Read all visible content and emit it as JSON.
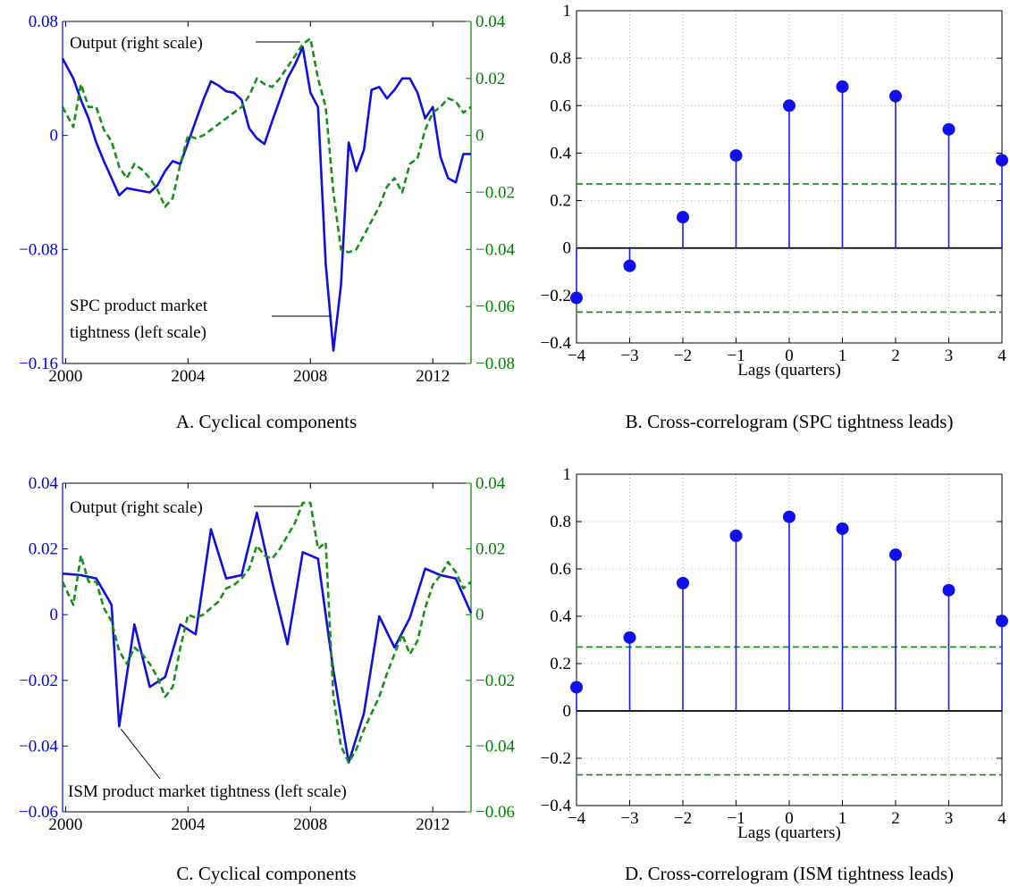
{
  "colors": {
    "left_axis": "#0000ee",
    "right_axis": "#008000",
    "spc_line": "#1010dd",
    "output_line": "#189018",
    "stem": "#1a1aee",
    "marker": "#1010ee",
    "band": "#118811",
    "zero_line": "#000000",
    "grid": "#b4b4b4"
  },
  "chart_data": [
    {
      "id": "A",
      "type": "line",
      "caption": "A. Cyclical components",
      "x_ticks": [
        2000,
        2004,
        2008,
        2012
      ],
      "xlim": [
        1999.9,
        2013.25
      ],
      "ylim_left": [
        -0.16,
        0.08
      ],
      "yticks_left": [
        "0.08",
        "0",
        "−0.08",
        "−0.16"
      ],
      "yticks_left_values": [
        0.08,
        0,
        -0.08,
        -0.16
      ],
      "ylim_right": [
        -0.08,
        0.04
      ],
      "yticks_right": [
        "0.04",
        "0.02",
        "0",
        "−0.02",
        "−0.04",
        "−0.06",
        "−0.08"
      ],
      "yticks_right_values": [
        0.04,
        0.02,
        0,
        -0.02,
        -0.04,
        -0.06,
        -0.08
      ],
      "annotations": {
        "output": "Output (right scale)",
        "tightness_line1": "SPC product market",
        "tightness_line2": "tightness (left scale)"
      },
      "series": [
        {
          "name": "SPC product market tightness (left scale)",
          "axis": "left",
          "style": "solid",
          "x": [
            1999.9,
            2000.25,
            2000.5,
            2000.75,
            2001.0,
            2001.25,
            2001.5,
            2001.75,
            2002.0,
            2002.25,
            2002.5,
            2002.75,
            2003.0,
            2003.25,
            2003.5,
            2003.75,
            2004.0,
            2004.25,
            2004.5,
            2004.75,
            2005.0,
            2005.25,
            2005.5,
            2005.75,
            2006.0,
            2006.25,
            2006.5,
            2006.75,
            2007.0,
            2007.25,
            2007.5,
            2007.75,
            2008.0,
            2008.25,
            2008.5,
            2008.75,
            2009.0,
            2009.25,
            2009.5,
            2009.75,
            2010.0,
            2010.25,
            2010.5,
            2010.75,
            2011.0,
            2011.25,
            2011.5,
            2011.75,
            2012.0,
            2012.25,
            2012.5,
            2012.75,
            2013.0,
            2013.25
          ],
          "values": [
            0.054,
            0.04,
            0.025,
            0.012,
            -0.005,
            -0.018,
            -0.03,
            -0.042,
            -0.037,
            -0.038,
            -0.039,
            -0.04,
            -0.035,
            -0.025,
            -0.018,
            -0.02,
            -0.005,
            0.01,
            0.025,
            0.038,
            0.035,
            0.031,
            0.03,
            0.025,
            0.005,
            -0.002,
            -0.006,
            0.01,
            0.025,
            0.04,
            0.05,
            0.062,
            0.03,
            0.02,
            -0.09,
            -0.151,
            -0.105,
            -0.005,
            -0.025,
            -0.01,
            0.032,
            0.034,
            0.026,
            0.032,
            0.04,
            0.04,
            0.03,
            0.012,
            0.02,
            -0.015,
            -0.03,
            -0.033,
            -0.013,
            -0.013
          ]
        },
        {
          "name": "Output (right scale)",
          "axis": "right",
          "style": "dashed",
          "x": [
            1999.9,
            2000.25,
            2000.5,
            2000.75,
            2001.0,
            2001.25,
            2001.5,
            2001.75,
            2002.0,
            2002.25,
            2002.5,
            2002.75,
            2003.0,
            2003.25,
            2003.5,
            2003.75,
            2004.0,
            2004.25,
            2004.5,
            2004.75,
            2005.0,
            2005.25,
            2005.5,
            2005.75,
            2006.0,
            2006.25,
            2006.5,
            2006.75,
            2007.0,
            2007.25,
            2007.5,
            2007.75,
            2008.0,
            2008.25,
            2008.5,
            2008.75,
            2009.0,
            2009.25,
            2009.5,
            2009.75,
            2010.0,
            2010.25,
            2010.5,
            2010.75,
            2011.0,
            2011.25,
            2011.5,
            2011.75,
            2012.0,
            2012.25,
            2012.5,
            2012.75,
            2013.0,
            2013.25
          ],
          "values": [
            0.01,
            0.003,
            0.018,
            0.01,
            0.01,
            0.002,
            -0.002,
            -0.011,
            -0.015,
            -0.01,
            -0.012,
            -0.015,
            -0.019,
            -0.025,
            -0.022,
            -0.01,
            0.0,
            -0.001,
            0.0,
            0.002,
            0.004,
            0.006,
            0.008,
            0.01,
            0.014,
            0.02,
            0.018,
            0.017,
            0.02,
            0.024,
            0.028,
            0.032,
            0.034,
            0.02,
            0.01,
            -0.02,
            -0.04,
            -0.041,
            -0.04,
            -0.035,
            -0.03,
            -0.025,
            -0.018,
            -0.015,
            -0.02,
            -0.01,
            -0.008,
            0.002,
            0.008,
            0.01,
            0.013,
            0.012,
            0.008,
            0.01
          ]
        }
      ]
    },
    {
      "id": "B",
      "type": "stem",
      "caption": "B. Cross-correlogram (SPC tightness leads)",
      "xlabel": "Lags (quarters)",
      "x": [
        -4,
        -3,
        -2,
        -1,
        0,
        1,
        2,
        3,
        4
      ],
      "x_tick_labels": [
        "−4",
        "−3",
        "−2",
        "−1",
        "0",
        "1",
        "2",
        "3",
        "4"
      ],
      "values": [
        -0.21,
        -0.075,
        0.13,
        0.39,
        0.6,
        0.68,
        0.64,
        0.5,
        0.37
      ],
      "ylim": [
        -0.4,
        1
      ],
      "yticks": [
        1,
        0.8,
        0.6,
        0.4,
        0.2,
        0,
        -0.2,
        -0.4
      ],
      "ytick_labels": [
        "1",
        "0.8",
        "0.6",
        "0.4",
        "0.2",
        "0",
        "−0.2",
        "−0.4"
      ],
      "confidence_band": [
        0.27,
        -0.27
      ],
      "grid": true
    },
    {
      "id": "C",
      "type": "line",
      "caption": "C. Cyclical components",
      "x_ticks": [
        2000,
        2004,
        2008,
        2012
      ],
      "xlim": [
        1999.9,
        2013.25
      ],
      "ylim_left": [
        -0.06,
        0.04
      ],
      "yticks_left": [
        "0.04",
        "0.02",
        "0",
        "−0.02",
        "−0.04",
        "−0.06"
      ],
      "yticks_left_values": [
        0.04,
        0.02,
        0,
        -0.02,
        -0.04,
        -0.06
      ],
      "ylim_right": [
        -0.06,
        0.04
      ],
      "yticks_right": [
        "0.04",
        "0.02",
        "0",
        "−0.02",
        "−0.04",
        "−0.06"
      ],
      "yticks_right_values": [
        0.04,
        0.02,
        0,
        -0.02,
        -0.04,
        -0.06
      ],
      "annotations": {
        "output": "Output (right scale)",
        "tightness": "ISM product market tightness (left scale)"
      },
      "series": [
        {
          "name": "ISM product market tightness (left scale)",
          "axis": "left",
          "style": "solid",
          "x": [
            1999.9,
            2000.5,
            2001.0,
            2001.5,
            2001.75,
            2002.25,
            2002.75,
            2003.25,
            2003.75,
            2004.25,
            2004.75,
            2005.25,
            2005.75,
            2006.25,
            2006.75,
            2007.25,
            2007.75,
            2008.25,
            2008.75,
            2009.25,
            2009.75,
            2010.25,
            2010.75,
            2011.25,
            2011.75,
            2012.25,
            2012.75,
            2013.25
          ],
          "values": [
            0.0125,
            0.012,
            0.011,
            0.003,
            -0.034,
            -0.003,
            -0.022,
            -0.019,
            -0.003,
            -0.006,
            0.026,
            0.011,
            0.012,
            0.031,
            0.01,
            -0.009,
            0.019,
            0.017,
            -0.017,
            -0.045,
            -0.03,
            -0.0005,
            -0.01,
            -0.001,
            0.014,
            0.012,
            0.011,
            0.0005
          ]
        },
        {
          "name": "Output (right scale)",
          "axis": "right",
          "style": "dashed",
          "x": [
            1999.9,
            2000.25,
            2000.5,
            2000.75,
            2001.0,
            2001.25,
            2001.5,
            2001.75,
            2002.0,
            2002.25,
            2002.5,
            2002.75,
            2003.0,
            2003.25,
            2003.5,
            2003.75,
            2004.0,
            2004.25,
            2004.5,
            2004.75,
            2005.0,
            2005.25,
            2005.5,
            2005.75,
            2006.0,
            2006.25,
            2006.5,
            2006.75,
            2007.0,
            2007.25,
            2007.5,
            2007.75,
            2008.0,
            2008.25,
            2008.5,
            2008.75,
            2009.0,
            2009.25,
            2009.5,
            2009.75,
            2010.0,
            2010.25,
            2010.5,
            2010.75,
            2011.0,
            2011.25,
            2011.5,
            2011.75,
            2012.0,
            2012.25,
            2012.5,
            2012.75,
            2013.0,
            2013.25
          ],
          "values": [
            0.01,
            0.003,
            0.018,
            0.01,
            0.01,
            0.002,
            -0.002,
            -0.011,
            -0.015,
            -0.01,
            -0.012,
            -0.015,
            -0.019,
            -0.025,
            -0.022,
            -0.01,
            0.0,
            -0.001,
            0.0,
            0.002,
            0.004,
            0.008,
            0.009,
            0.011,
            0.014,
            0.021,
            0.018,
            0.017,
            0.02,
            0.024,
            0.028,
            0.034,
            0.034,
            0.02,
            0.022,
            -0.025,
            -0.04,
            -0.045,
            -0.041,
            -0.035,
            -0.03,
            -0.025,
            -0.018,
            -0.012,
            -0.006,
            -0.012,
            -0.008,
            0.002,
            0.009,
            0.012,
            0.016,
            0.013,
            0.008,
            0.01
          ]
        }
      ]
    },
    {
      "id": "D",
      "type": "stem",
      "caption": "D. Cross-correlogram (ISM tightness leads)",
      "xlabel": "Lags (quarters)",
      "x": [
        -4,
        -3,
        -2,
        -1,
        0,
        1,
        2,
        3,
        4
      ],
      "x_tick_labels": [
        "−4",
        "−3",
        "−2",
        "−1",
        "0",
        "1",
        "2",
        "3",
        "4"
      ],
      "values": [
        0.1,
        0.31,
        0.54,
        0.74,
        0.82,
        0.77,
        0.66,
        0.51,
        0.38
      ],
      "ylim": [
        -0.4,
        1
      ],
      "yticks": [
        1,
        0.8,
        0.6,
        0.4,
        0.2,
        0,
        -0.2,
        -0.4
      ],
      "ytick_labels": [
        "1",
        "0.8",
        "0.6",
        "0.4",
        "0.2",
        "0",
        "−0.2",
        "−0.4"
      ],
      "confidence_band": [
        0.27,
        -0.27
      ],
      "grid": true
    }
  ]
}
